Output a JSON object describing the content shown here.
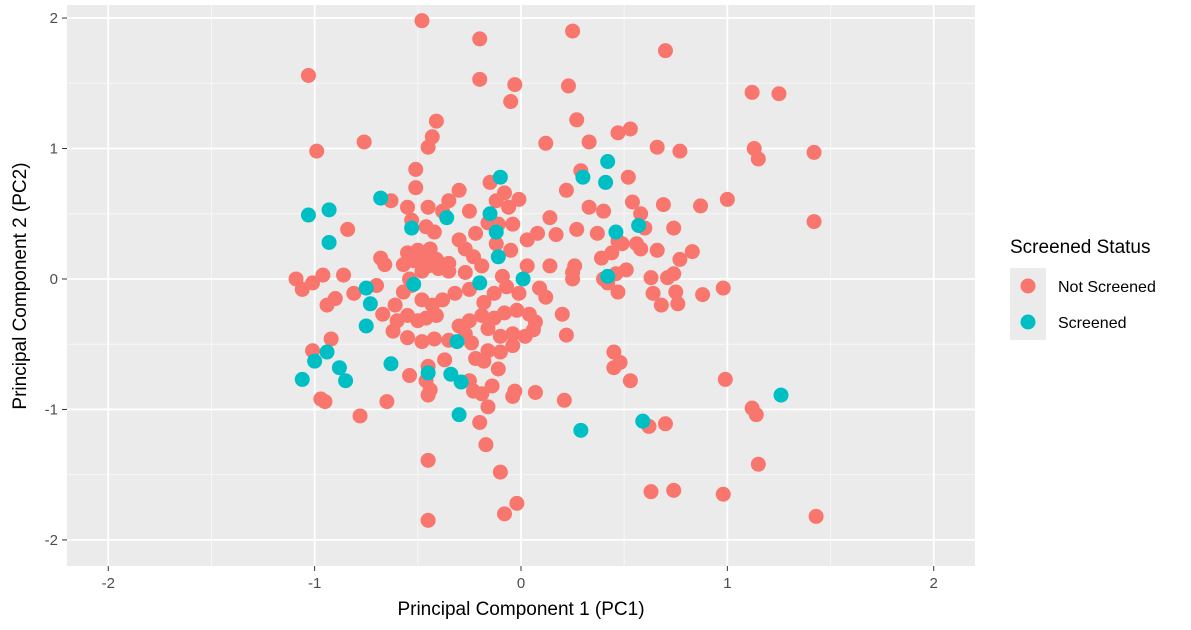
{
  "chart_data": {
    "type": "scatter",
    "title": "",
    "xlabel": "Principal Component 1 (PC1)",
    "ylabel": "Principal Component 2 (PC2)",
    "xlim": [
      -2.2,
      2.2
    ],
    "ylim": [
      -2.2,
      2.1
    ],
    "x_ticks": [
      -2,
      -1,
      0,
      1,
      2
    ],
    "y_ticks": [
      -2,
      -1,
      0,
      1,
      2
    ],
    "x_tick_labels": [
      "-2",
      "-1",
      "0",
      "1",
      "2"
    ],
    "y_tick_labels": [
      "-2",
      "-1",
      "0",
      "1",
      "2"
    ],
    "grid": true,
    "legend": {
      "title": "Screened Status",
      "placement": "right"
    },
    "series": [
      {
        "name": "Not Screened",
        "color": "#F8766D",
        "points": [
          [
            -0.48,
            1.98
          ],
          [
            -0.2,
            1.84
          ],
          [
            0.25,
            1.9
          ],
          [
            -0.2,
            1.53
          ],
          [
            -1.03,
            1.56
          ],
          [
            -0.03,
            1.49
          ],
          [
            0.23,
            1.48
          ],
          [
            -0.05,
            1.36
          ],
          [
            0.7,
            1.75
          ],
          [
            1.12,
            1.43
          ],
          [
            1.25,
            1.42
          ],
          [
            -0.41,
            1.21
          ],
          [
            0.27,
            1.22
          ],
          [
            -0.43,
            1.09
          ],
          [
            -0.45,
            1.01
          ],
          [
            -0.99,
            0.98
          ],
          [
            -0.76,
            1.05
          ],
          [
            0.12,
            1.04
          ],
          [
            0.33,
            1.05
          ],
          [
            0.47,
            1.12
          ],
          [
            0.53,
            1.15
          ],
          [
            0.66,
            1.01
          ],
          [
            0.77,
            0.98
          ],
          [
            1.13,
            1.0
          ],
          [
            1.15,
            0.92
          ],
          [
            1.42,
            0.97
          ],
          [
            -0.51,
            0.84
          ],
          [
            -0.51,
            0.7
          ],
          [
            -0.35,
            0.6
          ],
          [
            -0.3,
            0.68
          ],
          [
            -0.15,
            0.74
          ],
          [
            -0.08,
            0.66
          ],
          [
            0.29,
            0.83
          ],
          [
            0.52,
            0.78
          ],
          [
            0.22,
            0.68
          ],
          [
            0.33,
            0.55
          ],
          [
            0.4,
            0.52
          ],
          [
            0.54,
            0.59
          ],
          [
            0.58,
            0.5
          ],
          [
            0.69,
            0.57
          ],
          [
            0.87,
            0.56
          ],
          [
            1.0,
            0.61
          ],
          [
            1.42,
            0.44
          ],
          [
            -0.63,
            0.6
          ],
          [
            -0.55,
            0.55
          ],
          [
            -0.45,
            0.55
          ],
          [
            -0.38,
            0.52
          ],
          [
            -0.25,
            0.52
          ],
          [
            -0.12,
            0.6
          ],
          [
            -0.06,
            0.55
          ],
          [
            -0.01,
            0.61
          ],
          [
            0.08,
            0.35
          ],
          [
            0.14,
            0.47
          ],
          [
            0.17,
            0.34
          ],
          [
            -0.53,
            0.45
          ],
          [
            -0.46,
            0.4
          ],
          [
            -0.42,
            0.36
          ],
          [
            -0.3,
            0.3
          ],
          [
            -0.22,
            0.35
          ],
          [
            -0.16,
            0.43
          ],
          [
            -0.11,
            0.42
          ],
          [
            -0.04,
            0.42
          ],
          [
            0.03,
            0.3
          ],
          [
            0.27,
            0.38
          ],
          [
            0.37,
            0.35
          ],
          [
            0.47,
            0.29
          ],
          [
            0.56,
            0.27
          ],
          [
            0.6,
            0.39
          ],
          [
            0.74,
            0.39
          ],
          [
            -0.84,
            0.38
          ],
          [
            -0.68,
            0.16
          ],
          [
            -0.66,
            0.11
          ],
          [
            -0.55,
            0.2
          ],
          [
            -0.52,
            0.14
          ],
          [
            -0.5,
            0.22
          ],
          [
            -0.47,
            0.17
          ],
          [
            -0.44,
            0.23
          ],
          [
            -0.41,
            0.15
          ],
          [
            -0.35,
            0.12
          ],
          [
            -0.27,
            0.23
          ],
          [
            -0.23,
            0.17
          ],
          [
            -0.12,
            0.27
          ],
          [
            -0.05,
            0.22
          ],
          [
            0.14,
            0.1
          ],
          [
            0.26,
            0.1
          ],
          [
            0.39,
            0.16
          ],
          [
            0.44,
            0.2
          ],
          [
            0.49,
            0.27
          ],
          [
            0.58,
            0.23
          ],
          [
            0.66,
            0.22
          ],
          [
            0.77,
            0.15
          ],
          [
            0.83,
            0.21
          ],
          [
            -1.09,
            0.0
          ],
          [
            -1.06,
            -0.08
          ],
          [
            -1.01,
            -0.03
          ],
          [
            -0.96,
            0.03
          ],
          [
            -0.86,
            0.03
          ],
          [
            -0.57,
            0.11
          ],
          [
            -0.54,
            0.0
          ],
          [
            -0.48,
            0.06
          ],
          [
            -0.45,
            0.1
          ],
          [
            -0.4,
            0.08
          ],
          [
            -0.35,
            0.06
          ],
          [
            -0.27,
            0.05
          ],
          [
            -0.19,
            0.1
          ],
          [
            -0.09,
            0.02
          ],
          [
            0.03,
            0.1
          ],
          [
            0.25,
            0.05
          ],
          [
            0.25,
            0.0
          ],
          [
            0.4,
            0.0
          ],
          [
            0.46,
            0.04
          ],
          [
            0.51,
            0.07
          ],
          [
            0.63,
            0.01
          ],
          [
            0.71,
            0.01
          ],
          [
            0.74,
            0.04
          ],
          [
            -0.94,
            -0.2
          ],
          [
            -0.9,
            -0.15
          ],
          [
            -0.81,
            -0.11
          ],
          [
            -0.7,
            -0.05
          ],
          [
            -0.61,
            -0.2
          ],
          [
            -0.57,
            -0.1
          ],
          [
            -0.53,
            -0.05
          ],
          [
            -0.48,
            -0.16
          ],
          [
            -0.43,
            -0.2
          ],
          [
            -0.38,
            -0.16
          ],
          [
            -0.32,
            -0.11
          ],
          [
            -0.25,
            -0.08
          ],
          [
            -0.18,
            -0.18
          ],
          [
            -0.13,
            -0.11
          ],
          [
            -0.07,
            -0.06
          ],
          [
            -0.01,
            -0.11
          ],
          [
            0.09,
            -0.07
          ],
          [
            0.12,
            -0.14
          ],
          [
            0.42,
            -0.03
          ],
          [
            0.47,
            -0.1
          ],
          [
            0.64,
            -0.11
          ],
          [
            0.75,
            -0.1
          ],
          [
            0.88,
            -0.12
          ],
          [
            0.98,
            -0.07
          ],
          [
            -0.67,
            -0.27
          ],
          [
            -0.6,
            -0.32
          ],
          [
            -0.55,
            -0.28
          ],
          [
            -0.5,
            -0.32
          ],
          [
            -0.46,
            -0.3
          ],
          [
            -0.41,
            -0.28
          ],
          [
            -0.3,
            -0.36
          ],
          [
            -0.25,
            -0.32
          ],
          [
            -0.19,
            -0.28
          ],
          [
            -0.13,
            -0.3
          ],
          [
            -0.08,
            -0.26
          ],
          [
            -0.02,
            -0.24
          ],
          [
            0.04,
            -0.27
          ],
          [
            0.07,
            -0.33
          ],
          [
            0.2,
            -0.27
          ],
          [
            0.68,
            -0.2
          ],
          [
            0.76,
            -0.19
          ],
          [
            -0.92,
            -0.46
          ],
          [
            -0.62,
            -0.4
          ],
          [
            -0.55,
            -0.45
          ],
          [
            -0.48,
            -0.48
          ],
          [
            -0.42,
            -0.46
          ],
          [
            -0.35,
            -0.47
          ],
          [
            -0.27,
            -0.42
          ],
          [
            -0.24,
            -0.49
          ],
          [
            -0.16,
            -0.38
          ],
          [
            -0.1,
            -0.44
          ],
          [
            -0.04,
            -0.42
          ],
          [
            0.02,
            -0.44
          ],
          [
            0.06,
            -0.39
          ],
          [
            0.22,
            -0.43
          ],
          [
            -1.01,
            -0.55
          ],
          [
            -0.16,
            -0.55
          ],
          [
            -0.1,
            -0.56
          ],
          [
            -0.04,
            -0.51
          ],
          [
            0.45,
            -0.56
          ],
          [
            -0.54,
            -0.74
          ],
          [
            -0.45,
            -0.67
          ],
          [
            -0.37,
            -0.62
          ],
          [
            -0.22,
            -0.61
          ],
          [
            -0.18,
            -0.63
          ],
          [
            0.45,
            -0.68
          ],
          [
            0.48,
            -0.64
          ],
          [
            -0.46,
            -0.78
          ],
          [
            -0.44,
            -0.85
          ],
          [
            -0.25,
            -0.78
          ],
          [
            -0.23,
            -0.86
          ],
          [
            -0.11,
            -0.69
          ],
          [
            0.53,
            -0.78
          ],
          [
            0.99,
            -0.77
          ],
          [
            -0.97,
            -0.92
          ],
          [
            -0.95,
            -0.94
          ],
          [
            -0.65,
            -0.94
          ],
          [
            -0.45,
            -0.89
          ],
          [
            -0.19,
            -0.88
          ],
          [
            -0.14,
            -0.82
          ],
          [
            -0.03,
            -0.86
          ],
          [
            -0.04,
            -0.9
          ],
          [
            0.07,
            -0.87
          ],
          [
            0.21,
            -0.93
          ],
          [
            -0.78,
            -1.05
          ],
          [
            -0.16,
            -0.98
          ],
          [
            1.12,
            -0.99
          ],
          [
            1.14,
            -1.04
          ],
          [
            -0.2,
            -1.1
          ],
          [
            0.62,
            -1.13
          ],
          [
            0.7,
            -1.11
          ],
          [
            -0.17,
            -1.27
          ],
          [
            -0.45,
            -1.39
          ],
          [
            1.15,
            -1.42
          ],
          [
            -0.1,
            -1.48
          ],
          [
            0.63,
            -1.63
          ],
          [
            0.74,
            -1.62
          ],
          [
            0.98,
            -1.65
          ],
          [
            -0.08,
            -1.8
          ],
          [
            -0.02,
            -1.72
          ],
          [
            -0.45,
            -1.85
          ],
          [
            1.43,
            -1.82
          ]
        ]
      },
      {
        "name": "Screened",
        "color": "#00BFC4",
        "points": [
          [
            -1.03,
            0.49
          ],
          [
            -0.93,
            0.53
          ],
          [
            -0.93,
            0.28
          ],
          [
            -0.68,
            0.62
          ],
          [
            -0.53,
            0.39
          ],
          [
            -0.36,
            0.47
          ],
          [
            -0.1,
            0.78
          ],
          [
            -0.15,
            0.5
          ],
          [
            -0.12,
            0.36
          ],
          [
            -0.11,
            0.17
          ],
          [
            0.42,
            0.9
          ],
          [
            0.41,
            0.74
          ],
          [
            0.3,
            0.78
          ],
          [
            0.57,
            0.41
          ],
          [
            0.46,
            0.36
          ],
          [
            0.42,
            0.02
          ],
          [
            0.01,
            0.0
          ],
          [
            -0.2,
            -0.03
          ],
          [
            -0.52,
            -0.04
          ],
          [
            -0.75,
            -0.07
          ],
          [
            -0.73,
            -0.19
          ],
          [
            -0.75,
            -0.36
          ],
          [
            -0.94,
            -0.56
          ],
          [
            -1.0,
            -0.63
          ],
          [
            -0.88,
            -0.68
          ],
          [
            -0.85,
            -0.78
          ],
          [
            -1.06,
            -0.77
          ],
          [
            -0.63,
            -0.65
          ],
          [
            -0.31,
            -0.48
          ],
          [
            -0.45,
            -0.72
          ],
          [
            -0.34,
            -0.73
          ],
          [
            -0.29,
            -0.79
          ],
          [
            -0.3,
            -1.04
          ],
          [
            0.29,
            -1.16
          ],
          [
            0.59,
            -1.09
          ],
          [
            1.26,
            -0.89
          ]
        ]
      }
    ]
  }
}
